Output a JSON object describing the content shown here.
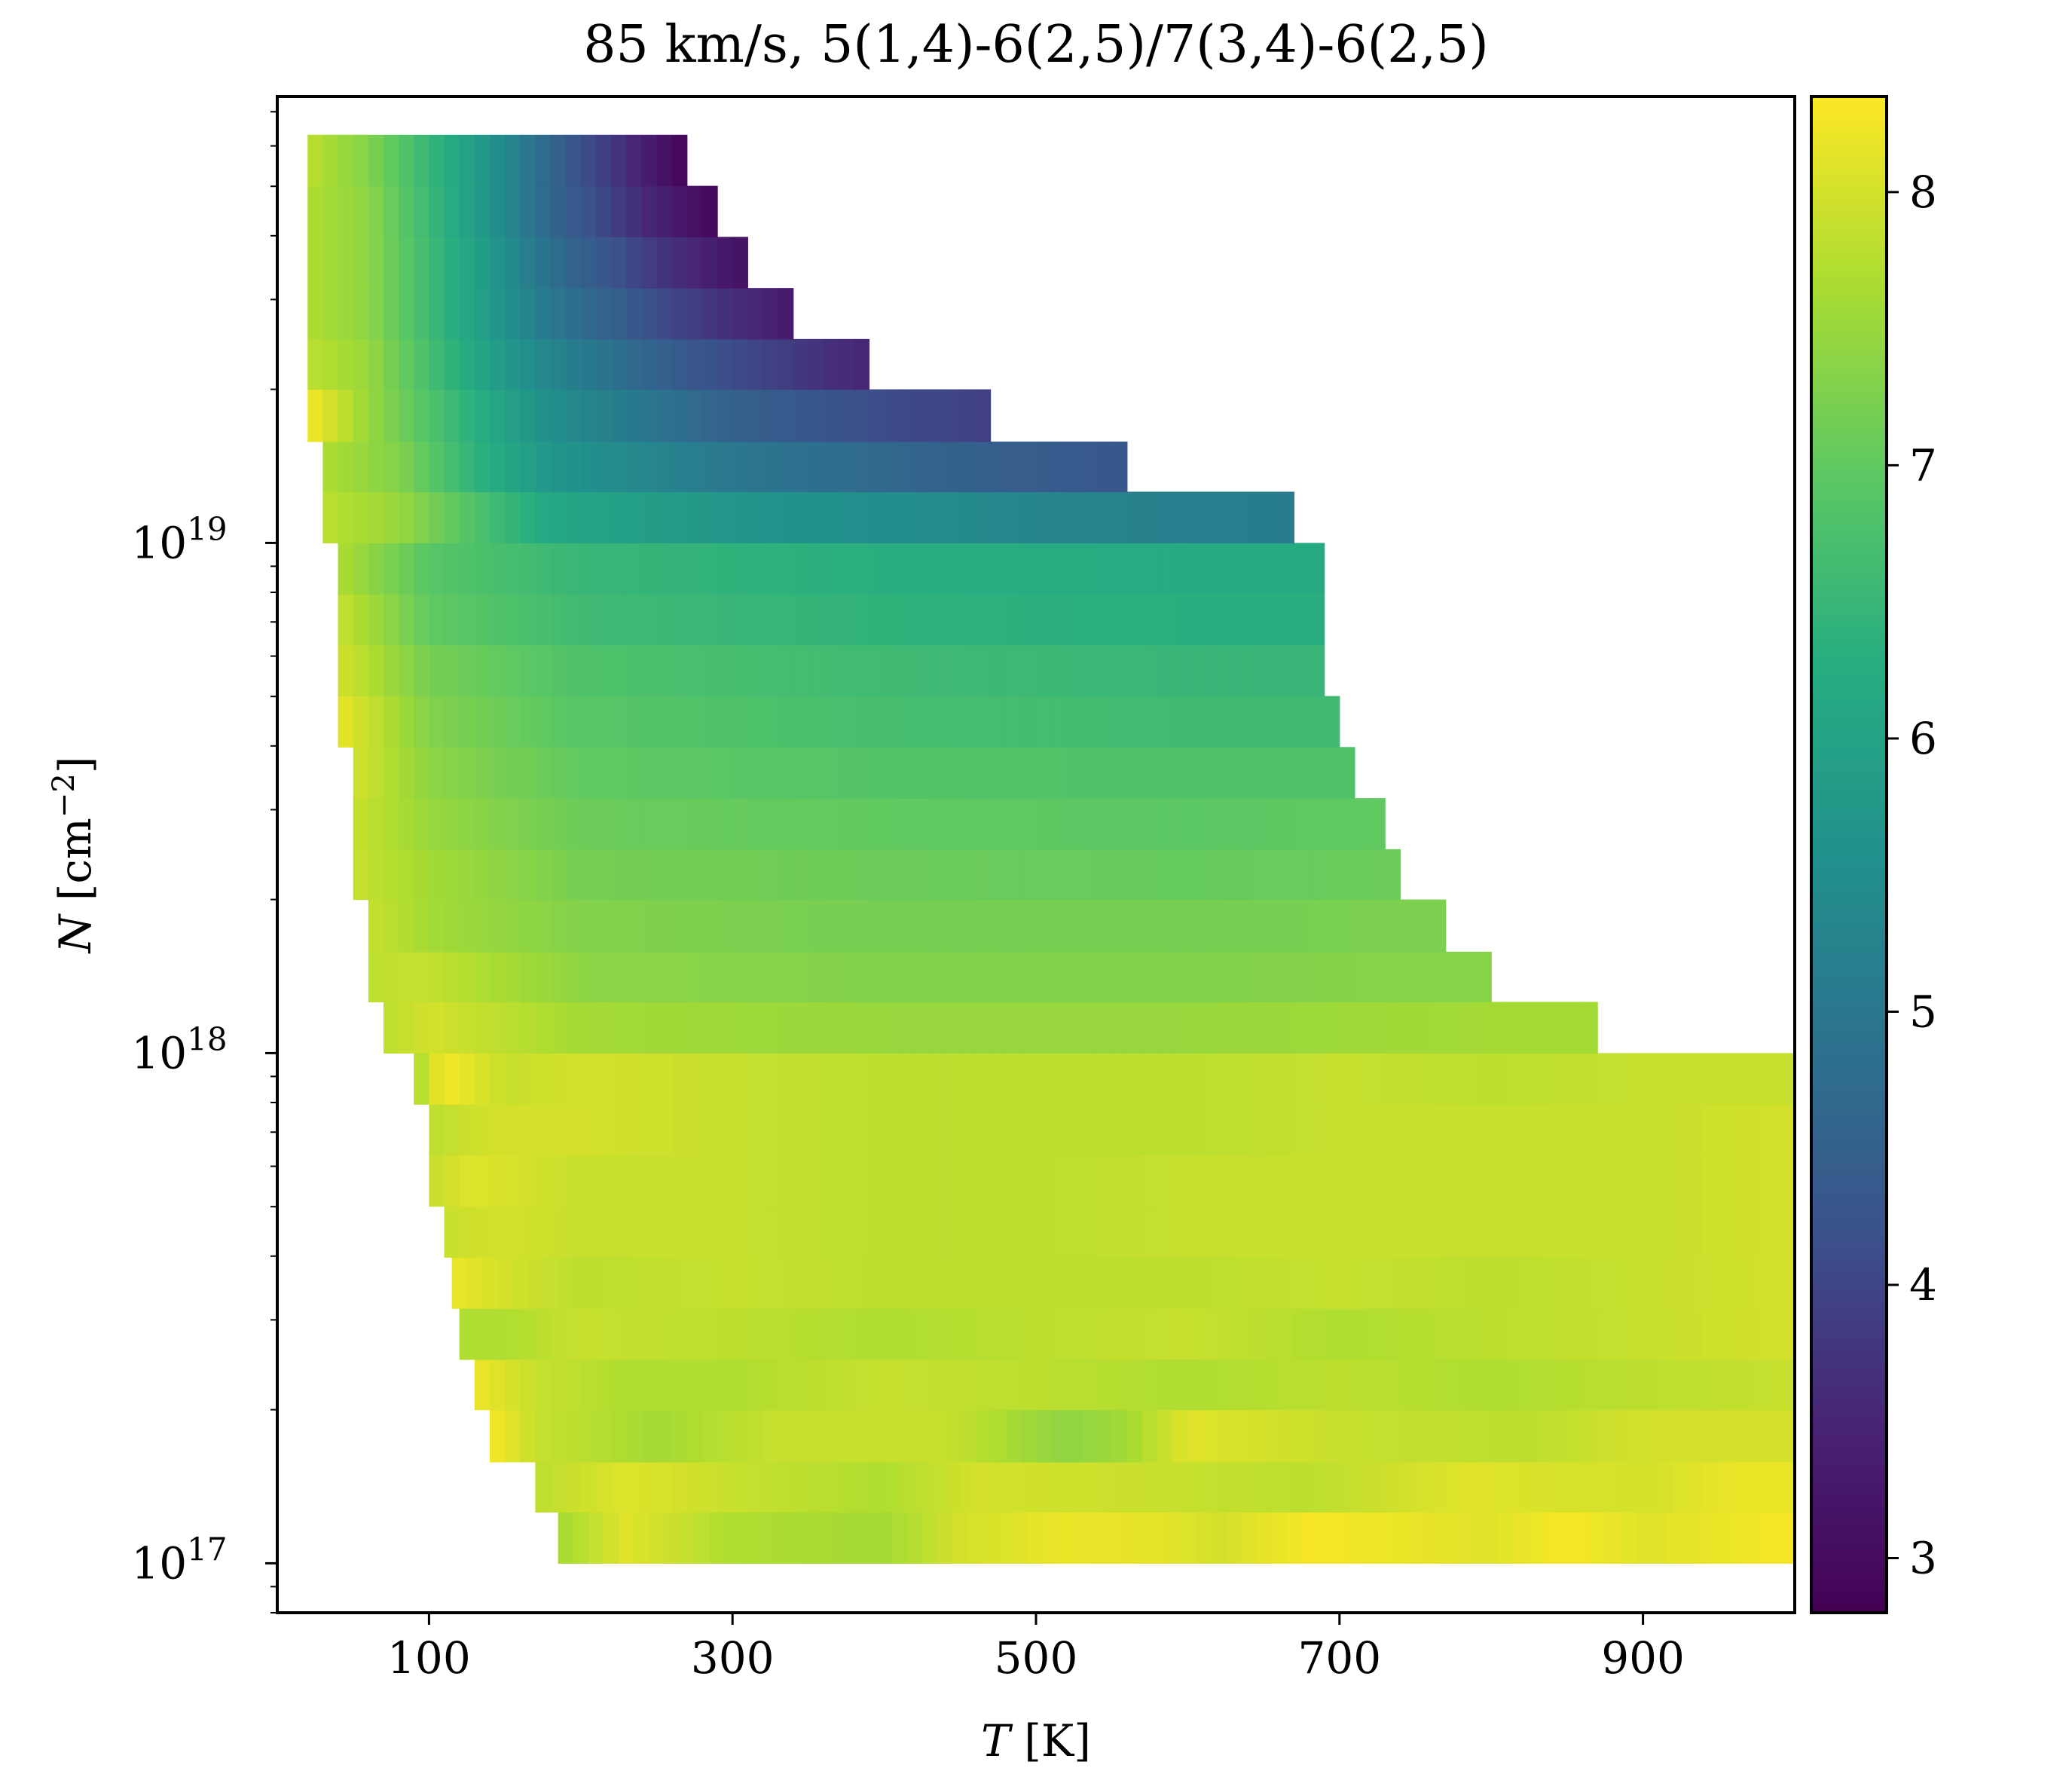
{
  "chart_data": {
    "type": "heatmap",
    "title": "85 km/s, 5(1,4)-6(2,5)/7(3,4)-6(2,5)",
    "xlabel": {
      "var": "T",
      "unit": " [K]"
    },
    "ylabel": {
      "var": "N",
      "unit_prefix": " [cm",
      "unit_sup": "−2",
      "unit_suffix": "]"
    },
    "xlim": [
      0,
      1000
    ],
    "xticks": [
      {
        "value": 100,
        "label": "100"
      },
      {
        "value": 300,
        "label": "300"
      },
      {
        "value": 500,
        "label": "500"
      },
      {
        "value": 700,
        "label": "700"
      },
      {
        "value": 900,
        "label": "900"
      }
    ],
    "ylog": true,
    "ylim": [
      8e+16,
      7.5e+19
    ],
    "yticks": [
      {
        "value": 1e+17,
        "base": "10",
        "exp": "17"
      },
      {
        "value": 1e+18,
        "base": "10",
        "exp": "18"
      },
      {
        "value": 1e+19,
        "base": "10",
        "exp": "19"
      }
    ],
    "colormap": "viridis",
    "clim": [
      2.8,
      8.35
    ],
    "colorbar_ticks": [
      {
        "value": 3,
        "label": "3"
      },
      {
        "value": 4,
        "label": "4"
      },
      {
        "value": 5,
        "label": "5"
      },
      {
        "value": 6,
        "label": "6"
      },
      {
        "value": 7,
        "label": "7"
      },
      {
        "value": 8,
        "label": "8"
      }
    ],
    "rows": [
      {
        "n_low": 1e+17,
        "n_high": 1.26e+17,
        "t_min": 185,
        "t_max": 1000,
        "anchors": [
          [
            185,
            7.6
          ],
          [
            230,
            8.1
          ],
          [
            300,
            7.7
          ],
          [
            400,
            7.6
          ],
          [
            450,
            8.0
          ],
          [
            520,
            8.2
          ],
          [
            580,
            8.15
          ],
          [
            620,
            8.0
          ],
          [
            680,
            8.3
          ],
          [
            800,
            8.1
          ],
          [
            850,
            8.3
          ],
          [
            900,
            8.1
          ],
          [
            950,
            8.2
          ],
          [
            1000,
            8.3
          ]
        ]
      },
      {
        "n_low": 1.26e+17,
        "n_high": 1.58e+17,
        "t_min": 170,
        "t_max": 1000,
        "anchors": [
          [
            170,
            7.8
          ],
          [
            230,
            8.1
          ],
          [
            300,
            7.9
          ],
          [
            400,
            7.7
          ],
          [
            460,
            8.0
          ],
          [
            600,
            7.9
          ],
          [
            680,
            7.8
          ],
          [
            780,
            8.1
          ],
          [
            900,
            8.0
          ],
          [
            960,
            8.2
          ],
          [
            1000,
            8.2
          ]
        ]
      },
      {
        "n_low": 1.58e+17,
        "n_high": 2e+17,
        "t_min": 140,
        "t_max": 1000,
        "anchors": [
          [
            140,
            8.3
          ],
          [
            170,
            7.9
          ],
          [
            250,
            7.6
          ],
          [
            330,
            7.9
          ],
          [
            440,
            7.9
          ],
          [
            520,
            7.4
          ],
          [
            560,
            7.6
          ],
          [
            600,
            8.1
          ],
          [
            700,
            7.9
          ],
          [
            820,
            7.8
          ],
          [
            900,
            8.0
          ],
          [
            1000,
            8.0
          ]
        ]
      },
      {
        "n_low": 2e+17,
        "n_high": 2.51e+17,
        "t_min": 130,
        "t_max": 1000,
        "anchors": [
          [
            130,
            8.2
          ],
          [
            170,
            7.9
          ],
          [
            230,
            7.7
          ],
          [
            300,
            7.7
          ],
          [
            400,
            7.9
          ],
          [
            500,
            7.8
          ],
          [
            600,
            7.7
          ],
          [
            700,
            7.8
          ],
          [
            800,
            7.7
          ],
          [
            900,
            7.8
          ],
          [
            1000,
            7.9
          ]
        ]
      },
      {
        "n_low": 2.51e+17,
        "n_high": 3.16e+17,
        "t_min": 120,
        "t_max": 1000,
        "anchors": [
          [
            120,
            7.7
          ],
          [
            150,
            7.7
          ],
          [
            200,
            7.9
          ],
          [
            300,
            7.8
          ],
          [
            400,
            7.7
          ],
          [
            500,
            7.8
          ],
          [
            600,
            7.9
          ],
          [
            700,
            7.7
          ],
          [
            800,
            7.8
          ],
          [
            900,
            7.9
          ],
          [
            1000,
            8.0
          ]
        ]
      },
      {
        "n_low": 3.16e+17,
        "n_high": 3.98e+17,
        "t_min": 115,
        "t_max": 1000,
        "anchors": [
          [
            115,
            8.2
          ],
          [
            150,
            8.0
          ],
          [
            200,
            7.8
          ],
          [
            300,
            7.9
          ],
          [
            400,
            7.8
          ],
          [
            500,
            7.8
          ],
          [
            600,
            7.8
          ],
          [
            700,
            7.9
          ],
          [
            800,
            7.8
          ],
          [
            900,
            7.9
          ],
          [
            1000,
            8.0
          ]
        ]
      },
      {
        "n_low": 3.98e+17,
        "n_high": 5.01e+17,
        "t_min": 110,
        "t_max": 1000,
        "anchors": [
          [
            110,
            7.9
          ],
          [
            150,
            8.0
          ],
          [
            200,
            7.9
          ],
          [
            300,
            7.9
          ],
          [
            400,
            7.8
          ],
          [
            500,
            7.8
          ],
          [
            600,
            7.9
          ],
          [
            700,
            7.9
          ],
          [
            800,
            7.9
          ],
          [
            900,
            7.9
          ],
          [
            1000,
            8.0
          ]
        ]
      },
      {
        "n_low": 5.01e+17,
        "n_high": 6.31e+17,
        "t_min": 100,
        "t_max": 1000,
        "anchors": [
          [
            100,
            7.9
          ],
          [
            130,
            8.1
          ],
          [
            200,
            7.9
          ],
          [
            300,
            7.9
          ],
          [
            400,
            7.8
          ],
          [
            500,
            7.8
          ],
          [
            600,
            7.9
          ],
          [
            700,
            7.9
          ],
          [
            800,
            7.9
          ],
          [
            900,
            7.9
          ],
          [
            1000,
            8.0
          ]
        ]
      },
      {
        "n_low": 6.31e+17,
        "n_high": 7.94e+17,
        "t_min": 100,
        "t_max": 1000,
        "anchors": [
          [
            100,
            7.8
          ],
          [
            140,
            8.0
          ],
          [
            200,
            8.0
          ],
          [
            300,
            7.9
          ],
          [
            400,
            7.8
          ],
          [
            500,
            7.8
          ],
          [
            600,
            7.8
          ],
          [
            700,
            7.9
          ],
          [
            800,
            7.9
          ],
          [
            900,
            7.9
          ],
          [
            1000,
            8.0
          ]
        ]
      },
      {
        "n_low": 7.94e+17,
        "n_high": 1e+18,
        "t_min": 90,
        "t_max": 1000,
        "anchors": [
          [
            90,
            7.6
          ],
          [
            110,
            8.3
          ],
          [
            150,
            7.9
          ],
          [
            200,
            8.0
          ],
          [
            300,
            7.9
          ],
          [
            400,
            7.8
          ],
          [
            500,
            7.8
          ],
          [
            600,
            7.8
          ],
          [
            700,
            7.9
          ],
          [
            800,
            7.8
          ],
          [
            900,
            7.9
          ],
          [
            1000,
            7.9
          ]
        ]
      },
      {
        "n_low": 1e+18,
        "n_high": 1.26e+18,
        "t_min": 70,
        "t_max": 870,
        "anchors": [
          [
            70,
            7.8
          ],
          [
            100,
            8.0
          ],
          [
            200,
            7.6
          ],
          [
            400,
            7.5
          ],
          [
            600,
            7.5
          ],
          [
            800,
            7.6
          ],
          [
            870,
            7.6
          ]
        ]
      },
      {
        "n_low": 1.26e+18,
        "n_high": 1.58e+18,
        "t_min": 60,
        "t_max": 800,
        "anchors": [
          [
            60,
            7.8
          ],
          [
            90,
            7.9
          ],
          [
            200,
            7.4
          ],
          [
            400,
            7.3
          ],
          [
            600,
            7.3
          ],
          [
            800,
            7.35
          ]
        ]
      },
      {
        "n_low": 1.58e+18,
        "n_high": 2e+18,
        "t_min": 60,
        "t_max": 770,
        "anchors": [
          [
            60,
            7.9
          ],
          [
            100,
            7.6
          ],
          [
            200,
            7.3
          ],
          [
            400,
            7.2
          ],
          [
            600,
            7.2
          ],
          [
            770,
            7.25
          ]
        ]
      },
      {
        "n_low": 2e+18,
        "n_high": 2.51e+18,
        "t_min": 50,
        "t_max": 740,
        "anchors": [
          [
            50,
            7.9
          ],
          [
            100,
            7.6
          ],
          [
            200,
            7.2
          ],
          [
            400,
            7.1
          ],
          [
            600,
            7.05
          ],
          [
            740,
            7.1
          ]
        ]
      },
      {
        "n_low": 2.51e+18,
        "n_high": 3.16e+18,
        "t_min": 50,
        "t_max": 730,
        "anchors": [
          [
            50,
            7.9
          ],
          [
            100,
            7.5
          ],
          [
            200,
            7.1
          ],
          [
            400,
            7.0
          ],
          [
            600,
            6.95
          ],
          [
            730,
            7.0
          ]
        ]
      },
      {
        "n_low": 3.16e+18,
        "n_high": 3.98e+18,
        "t_min": 50,
        "t_max": 710,
        "anchors": [
          [
            50,
            8.0
          ],
          [
            100,
            7.4
          ],
          [
            200,
            7.0
          ],
          [
            400,
            6.85
          ],
          [
            600,
            6.8
          ],
          [
            710,
            6.8
          ]
        ]
      },
      {
        "n_low": 3.98e+18,
        "n_high": 5.01e+18,
        "t_min": 40,
        "t_max": 700,
        "anchors": [
          [
            40,
            8.2
          ],
          [
            100,
            7.3
          ],
          [
            200,
            6.9
          ],
          [
            400,
            6.7
          ],
          [
            600,
            6.6
          ],
          [
            700,
            6.6
          ]
        ]
      },
      {
        "n_low": 5.01e+18,
        "n_high": 6.31e+18,
        "t_min": 40,
        "t_max": 690,
        "anchors": [
          [
            40,
            8.0
          ],
          [
            100,
            7.2
          ],
          [
            200,
            6.8
          ],
          [
            400,
            6.6
          ],
          [
            600,
            6.5
          ],
          [
            690,
            6.5
          ]
        ]
      },
      {
        "n_low": 6.31e+18,
        "n_high": 7.94e+18,
        "t_min": 40,
        "t_max": 690,
        "anchors": [
          [
            40,
            7.9
          ],
          [
            100,
            7.0
          ],
          [
            200,
            6.6
          ],
          [
            400,
            6.4
          ],
          [
            600,
            6.3
          ],
          [
            690,
            6.3
          ]
        ]
      },
      {
        "n_low": 7.94e+18,
        "n_high": 1e+19,
        "t_min": 40,
        "t_max": 690,
        "anchors": [
          [
            40,
            7.7
          ],
          [
            100,
            6.9
          ],
          [
            200,
            6.5
          ],
          [
            400,
            6.3
          ],
          [
            600,
            6.2
          ],
          [
            690,
            6.2
          ]
        ]
      },
      {
        "n_low": 1e+19,
        "n_high": 1.26e+19,
        "t_min": 30,
        "t_max": 670,
        "anchors": [
          [
            30,
            7.8
          ],
          [
            80,
            7.5
          ],
          [
            130,
            6.8
          ],
          [
            180,
            6.1
          ],
          [
            300,
            5.7
          ],
          [
            500,
            5.3
          ],
          [
            670,
            5.1
          ]
        ]
      },
      {
        "n_low": 1.26e+19,
        "n_high": 1.58e+19,
        "t_min": 30,
        "t_max": 560,
        "anchors": [
          [
            30,
            7.7
          ],
          [
            80,
            7.3
          ],
          [
            130,
            6.4
          ],
          [
            180,
            5.7
          ],
          [
            300,
            5.0
          ],
          [
            450,
            4.5
          ],
          [
            560,
            4.3
          ]
        ]
      },
      {
        "n_low": 1.58e+19,
        "n_high": 2e+19,
        "t_min": 20,
        "t_max": 470,
        "anchors": [
          [
            20,
            8.3
          ],
          [
            60,
            7.5
          ],
          [
            130,
            6.3
          ],
          [
            180,
            5.5
          ],
          [
            300,
            4.5
          ],
          [
            400,
            4.1
          ],
          [
            470,
            3.9
          ]
        ]
      },
      {
        "n_low": 2e+19,
        "n_high": 2.51e+19,
        "t_min": 20,
        "t_max": 390,
        "anchors": [
          [
            20,
            7.8
          ],
          [
            60,
            7.5
          ],
          [
            130,
            6.1
          ],
          [
            180,
            5.3
          ],
          [
            270,
            4.3
          ],
          [
            390,
            3.5
          ]
        ]
      },
      {
        "n_low": 2.51e+19,
        "n_high": 3.16e+19,
        "t_min": 20,
        "t_max": 340,
        "anchors": [
          [
            20,
            7.7
          ],
          [
            60,
            7.4
          ],
          [
            130,
            6.0
          ],
          [
            180,
            5.0
          ],
          [
            260,
            4.0
          ],
          [
            340,
            3.3
          ]
        ]
      },
      {
        "n_low": 3.16e+19,
        "n_high": 3.98e+19,
        "t_min": 20,
        "t_max": 310,
        "anchors": [
          [
            20,
            7.7
          ],
          [
            60,
            7.4
          ],
          [
            130,
            6.0
          ],
          [
            180,
            4.8
          ],
          [
            250,
            3.8
          ],
          [
            310,
            3.1
          ]
        ]
      },
      {
        "n_low": 3.98e+19,
        "n_high": 5.01e+19,
        "t_min": 20,
        "t_max": 290,
        "anchors": [
          [
            20,
            7.7
          ],
          [
            60,
            7.4
          ],
          [
            130,
            5.9
          ],
          [
            180,
            4.6
          ],
          [
            240,
            3.6
          ],
          [
            290,
            2.9
          ]
        ]
      },
      {
        "n_low": 5.01e+19,
        "n_high": 6.31e+19,
        "t_min": 20,
        "t_max": 270,
        "anchors": [
          [
            20,
            7.8
          ],
          [
            60,
            7.3
          ],
          [
            130,
            5.9
          ],
          [
            180,
            4.6
          ],
          [
            230,
            3.6
          ],
          [
            270,
            2.85
          ]
        ]
      }
    ]
  }
}
